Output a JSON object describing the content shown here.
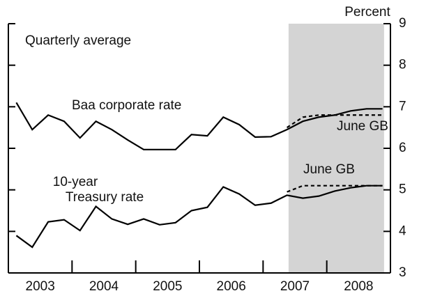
{
  "chart_data": {
    "type": "line",
    "annotations": [
      "Percent",
      "Quarterly average",
      "Baa corporate rate",
      "10-year",
      "Treasury rate",
      "June GB",
      "June GB"
    ],
    "x": [
      2003.125,
      2003.375,
      2003.625,
      2003.875,
      2004.125,
      2004.375,
      2004.625,
      2004.875,
      2005.125,
      2005.375,
      2005.625,
      2005.875,
      2006.125,
      2006.375,
      2006.625,
      2006.875,
      2007.125,
      2007.375,
      2007.625,
      2007.875,
      2008.125,
      2008.375,
      2008.625,
      2008.875
    ],
    "series": [
      {
        "color": "#000000",
        "dash": false,
        "values": [
          7.1,
          6.45,
          6.8,
          6.65,
          6.25,
          6.65,
          6.45,
          6.2,
          5.97,
          5.97,
          5.97,
          6.33,
          6.3,
          6.75,
          6.57,
          6.27,
          6.28,
          6.45,
          6.65,
          6.75,
          6.8,
          6.9,
          6.95,
          6.95
        ]
      },
      {
        "color": "#000000",
        "dash": true,
        "values": [
          null,
          null,
          null,
          null,
          null,
          null,
          null,
          null,
          null,
          null,
          null,
          null,
          null,
          null,
          null,
          null,
          null,
          6.5,
          6.75,
          6.8,
          6.8,
          6.8,
          6.8,
          6.8
        ]
      },
      {
        "color": "#000000",
        "dash": false,
        "values": [
          3.9,
          3.62,
          4.23,
          4.28,
          4.02,
          4.6,
          4.3,
          4.17,
          4.3,
          4.16,
          4.21,
          4.5,
          4.58,
          5.07,
          4.9,
          4.63,
          4.68,
          4.87,
          4.8,
          4.85,
          4.97,
          5.05,
          5.1,
          5.1
        ]
      },
      {
        "color": "#000000",
        "dash": true,
        "values": [
          null,
          null,
          null,
          null,
          null,
          null,
          null,
          null,
          null,
          null,
          null,
          null,
          null,
          null,
          null,
          null,
          null,
          4.95,
          5.1,
          5.1,
          5.1,
          5.1,
          5.1,
          5.1
        ]
      }
    ],
    "xlim": [
      2003,
      2009
    ],
    "xticks": [
      {
        "value": 2003.5,
        "label": "2003"
      },
      {
        "value": 2004.5,
        "label": "2004"
      },
      {
        "value": 2005.5,
        "label": "2005"
      },
      {
        "value": 2006.5,
        "label": "2006"
      },
      {
        "value": 2007.5,
        "label": "2007"
      },
      {
        "value": 2008.5,
        "label": "2008"
      }
    ],
    "xtick_marks": [
      2004,
      2005,
      2006,
      2007,
      2008
    ],
    "ylim": [
      3,
      9
    ],
    "yticks": [
      3,
      4,
      5,
      6,
      7,
      8,
      9
    ],
    "shade": [
      2007.4,
      2008.9
    ],
    "shade_color": "#d4d4d4"
  }
}
